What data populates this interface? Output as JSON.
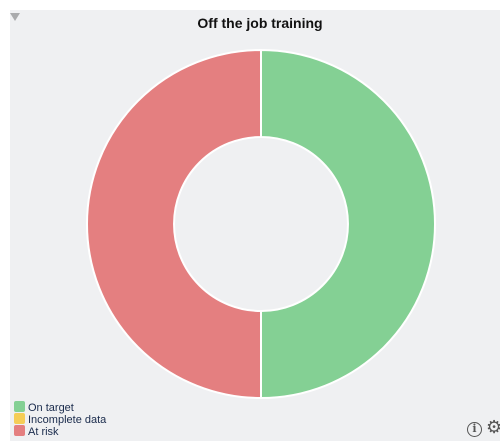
{
  "chart_data": {
    "type": "pie",
    "title": "Off the job training",
    "categories": [
      "On target",
      "Incomplete data",
      "At risk"
    ],
    "values": [
      50,
      0,
      50
    ],
    "colors": [
      "#84d094",
      "#f5cd57",
      "#e47f80"
    ],
    "donut": true,
    "legend_position": "bottom-left"
  },
  "icons": {
    "collapse": "triangle-down-icon",
    "info": "info-icon",
    "settings": "gear-icon"
  },
  "icon_glyphs": {
    "info": "i",
    "settings": "⚙"
  }
}
